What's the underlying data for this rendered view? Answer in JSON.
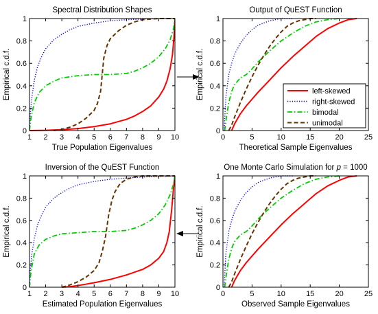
{
  "chart_data": [
    {
      "type": "line",
      "title": "Spectral Distribution Shapes",
      "xlabel": "True Population Eigenvalues",
      "ylabel": "Empirical c.d.f.",
      "xlim": [
        1,
        10
      ],
      "ylim": [
        0,
        1
      ],
      "xticks": [
        1,
        2,
        3,
        4,
        5,
        6,
        7,
        8,
        9,
        10
      ],
      "yticks": [
        0,
        0.2,
        0.4,
        0.6,
        0.8,
        1
      ],
      "series": [
        {
          "name": "left-skewed",
          "color": "#ff0000",
          "dash": "solid",
          "x": [
            1,
            2,
            3,
            4,
            5,
            6,
            7,
            7.5,
            8,
            8.5,
            9,
            9.3,
            9.5,
            9.7,
            9.85,
            9.95,
            10
          ],
          "y": [
            0,
            0.002,
            0.008,
            0.018,
            0.035,
            0.06,
            0.1,
            0.13,
            0.17,
            0.22,
            0.3,
            0.37,
            0.44,
            0.55,
            0.68,
            0.85,
            1
          ]
        },
        {
          "name": "right-skewed",
          "color": "#0000ff",
          "dash": "dot",
          "x": [
            1,
            1.05,
            1.15,
            1.3,
            1.5,
            1.75,
            2,
            2.5,
            3,
            3.5,
            4,
            5,
            6,
            7,
            8,
            9,
            10
          ],
          "y": [
            0,
            0.15,
            0.3,
            0.45,
            0.57,
            0.66,
            0.73,
            0.81,
            0.86,
            0.9,
            0.93,
            0.96,
            0.98,
            0.99,
            0.995,
            0.999,
            1
          ]
        },
        {
          "name": "bimodal",
          "color": "#00cc00",
          "dash": "dashdot",
          "x": [
            1,
            1.1,
            1.3,
            1.6,
            2,
            2.5,
            3,
            4,
            5,
            6,
            7,
            7.5,
            8,
            8.5,
            9,
            9.4,
            9.7,
            9.9,
            10
          ],
          "y": [
            0,
            0.12,
            0.25,
            0.34,
            0.4,
            0.44,
            0.47,
            0.49,
            0.5,
            0.5,
            0.51,
            0.53,
            0.56,
            0.6,
            0.66,
            0.73,
            0.81,
            0.9,
            1
          ]
        },
        {
          "name": "unimodal",
          "color": "#663300",
          "dash": "dash",
          "x": [
            2.5,
            3,
            3.5,
            4,
            4.5,
            5,
            5.2,
            5.4,
            5.5,
            5.6,
            5.8,
            6,
            6.5,
            7,
            7.5,
            8,
            9,
            10
          ],
          "y": [
            0,
            0.01,
            0.03,
            0.06,
            0.11,
            0.18,
            0.24,
            0.35,
            0.5,
            0.65,
            0.76,
            0.82,
            0.89,
            0.94,
            0.97,
            0.99,
            1,
            1
          ]
        }
      ]
    },
    {
      "type": "line",
      "title": "Output of QuEST Function",
      "xlabel": "Theoretical Sample Eigenvalues",
      "ylabel": "Empirical c.d.f.",
      "xlim": [
        0,
        25
      ],
      "ylim": [
        0,
        1
      ],
      "xticks": [
        0,
        5,
        10,
        15,
        20,
        25
      ],
      "yticks": [
        0,
        0.2,
        0.4,
        0.6,
        0.8,
        1
      ],
      "legend": "right",
      "series": [
        {
          "name": "left-skewed",
          "color": "#ff0000",
          "dash": "solid",
          "x": [
            1.5,
            2,
            3,
            4,
            5,
            6,
            8,
            10,
            12,
            14,
            16,
            18,
            20,
            21.5,
            23
          ],
          "y": [
            0,
            0.06,
            0.15,
            0.22,
            0.28,
            0.34,
            0.45,
            0.56,
            0.66,
            0.75,
            0.84,
            0.91,
            0.96,
            0.99,
            1
          ]
        },
        {
          "name": "right-skewed",
          "color": "#0000ff",
          "dash": "dot",
          "x": [
            0.2,
            0.5,
            1,
            1.5,
            2,
            3,
            4,
            5,
            6,
            7,
            8,
            9,
            10,
            12
          ],
          "y": [
            0,
            0.3,
            0.5,
            0.6,
            0.68,
            0.78,
            0.85,
            0.9,
            0.94,
            0.96,
            0.98,
            0.99,
            1,
            1
          ]
        },
        {
          "name": "bimodal",
          "color": "#00cc00",
          "dash": "dashdot",
          "x": [
            0.3,
            0.6,
            1,
            1.5,
            2,
            3,
            4,
            5,
            6,
            7,
            8,
            10,
            12,
            14,
            16,
            18,
            20
          ],
          "y": [
            0,
            0.12,
            0.25,
            0.35,
            0.41,
            0.47,
            0.5,
            0.55,
            0.61,
            0.66,
            0.71,
            0.8,
            0.87,
            0.93,
            0.97,
            0.99,
            1
          ]
        },
        {
          "name": "unimodal",
          "color": "#663300",
          "dash": "dash",
          "x": [
            1,
            1.5,
            2,
            3,
            4,
            5,
            6,
            7,
            8,
            9,
            10,
            11,
            12,
            13,
            14,
            15,
            16
          ],
          "y": [
            0,
            0.05,
            0.12,
            0.25,
            0.37,
            0.48,
            0.58,
            0.67,
            0.75,
            0.82,
            0.88,
            0.93,
            0.96,
            0.98,
            0.99,
            1,
            1
          ]
        }
      ]
    },
    {
      "type": "line",
      "title": "Inversion of the QuEST Function",
      "xlabel": "Estimated Population Eigenvalues",
      "ylabel": "Empirical c.d.f.",
      "xlim": [
        1,
        10
      ],
      "ylim": [
        0,
        1
      ],
      "xticks": [
        1,
        2,
        3,
        4,
        5,
        6,
        7,
        8,
        9,
        10
      ],
      "yticks": [
        0,
        0.2,
        0.4,
        0.6,
        0.8,
        1
      ],
      "series": [
        {
          "name": "left-skewed",
          "color": "#ff0000",
          "dash": "solid",
          "x": [
            3,
            3.5,
            4,
            5,
            6,
            7,
            8,
            8.5,
            9,
            9.3,
            9.5,
            9.65,
            9.8,
            9.9,
            10
          ],
          "y": [
            0,
            0.005,
            0.015,
            0.04,
            0.07,
            0.11,
            0.16,
            0.2,
            0.26,
            0.32,
            0.4,
            0.5,
            0.7,
            0.87,
            1
          ]
        },
        {
          "name": "right-skewed",
          "color": "#0000ff",
          "dash": "dot",
          "x": [
            1,
            1.05,
            1.15,
            1.3,
            1.5,
            1.75,
            2,
            2.5,
            3,
            3.5,
            4,
            5,
            6,
            7,
            8,
            9,
            10
          ],
          "y": [
            0,
            0.15,
            0.3,
            0.44,
            0.56,
            0.65,
            0.72,
            0.8,
            0.85,
            0.89,
            0.92,
            0.95,
            0.97,
            0.98,
            0.99,
            0.995,
            1
          ]
        },
        {
          "name": "bimodal",
          "color": "#00cc00",
          "dash": "dashdot",
          "x": [
            1,
            1.1,
            1.3,
            1.6,
            2,
            2.5,
            3,
            4,
            5,
            6,
            7,
            7.5,
            8,
            8.5,
            9,
            9.4,
            9.7,
            9.9,
            10
          ],
          "y": [
            0,
            0.15,
            0.3,
            0.38,
            0.43,
            0.46,
            0.48,
            0.49,
            0.5,
            0.5,
            0.51,
            0.53,
            0.56,
            0.6,
            0.66,
            0.74,
            0.83,
            0.92,
            1
          ]
        },
        {
          "name": "unimodal",
          "color": "#663300",
          "dash": "dash",
          "x": [
            3,
            3.5,
            4,
            4.5,
            5,
            5.3,
            5.5,
            5.7,
            5.8,
            5.9,
            6.1,
            6.3,
            6.6,
            7,
            7.5,
            8,
            9,
            10
          ],
          "y": [
            0,
            0.02,
            0.05,
            0.09,
            0.15,
            0.22,
            0.32,
            0.45,
            0.55,
            0.65,
            0.78,
            0.86,
            0.93,
            0.97,
            0.99,
            1,
            1,
            1
          ]
        }
      ]
    },
    {
      "type": "line",
      "title": "One Monte Carlo Simulation for p = 1000",
      "xlabel": "Observed Sample Eigenvalues",
      "ylabel": "Empirical c.d.f.",
      "xlim": [
        0,
        25
      ],
      "ylim": [
        0,
        1
      ],
      "xticks": [
        0,
        5,
        10,
        15,
        20,
        25
      ],
      "yticks": [
        0,
        0.2,
        0.4,
        0.6,
        0.8,
        1
      ],
      "series": [
        {
          "name": "left-skewed",
          "color": "#ff0000",
          "dash": "solid",
          "x": [
            1.5,
            2,
            3,
            4,
            5,
            6,
            8,
            10,
            12,
            14,
            16,
            18,
            20,
            21.5,
            23
          ],
          "y": [
            0,
            0.06,
            0.15,
            0.22,
            0.28,
            0.34,
            0.45,
            0.56,
            0.66,
            0.75,
            0.84,
            0.91,
            0.96,
            0.99,
            1
          ]
        },
        {
          "name": "right-skewed",
          "color": "#0000ff",
          "dash": "dot",
          "x": [
            0.2,
            0.5,
            1,
            1.5,
            2,
            3,
            4,
            5,
            6,
            7,
            8,
            9,
            10,
            12
          ],
          "y": [
            0,
            0.3,
            0.5,
            0.6,
            0.68,
            0.78,
            0.85,
            0.9,
            0.94,
            0.96,
            0.98,
            0.99,
            1,
            1
          ]
        },
        {
          "name": "bimodal",
          "color": "#00cc00",
          "dash": "dashdot",
          "x": [
            0.3,
            0.6,
            1,
            1.5,
            2,
            3,
            4,
            5,
            6,
            7,
            8,
            10,
            12,
            14,
            16,
            18,
            20
          ],
          "y": [
            0,
            0.12,
            0.25,
            0.35,
            0.41,
            0.47,
            0.5,
            0.55,
            0.61,
            0.66,
            0.71,
            0.8,
            0.87,
            0.93,
            0.97,
            0.99,
            1
          ]
        },
        {
          "name": "unimodal",
          "color": "#663300",
          "dash": "dash",
          "x": [
            1,
            1.5,
            2,
            3,
            4,
            5,
            6,
            7,
            8,
            9,
            10,
            11,
            12,
            13,
            14,
            15,
            16
          ],
          "y": [
            0,
            0.05,
            0.12,
            0.25,
            0.37,
            0.48,
            0.58,
            0.67,
            0.75,
            0.82,
            0.88,
            0.93,
            0.96,
            0.98,
            0.99,
            1,
            1
          ]
        }
      ]
    }
  ]
}
